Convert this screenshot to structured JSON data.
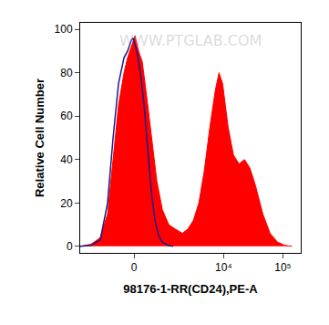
{
  "chart_data": {
    "type": "area",
    "xlabel": "98176-1-RR(CD24),PE-A",
    "ylabel": "Relative Cell Number",
    "annotations": [
      {
        "text": "WWW.PTGLAB.COM"
      }
    ],
    "xlim": [
      -2470,
      200000
    ],
    "xticks": [
      0,
      {
        "value": 10000,
        "label": "10⁴"
      },
      {
        "value": 100000,
        "label": "10⁵"
      }
    ],
    "ylim": [
      -3,
      103
    ],
    "yticks": [
      0,
      20,
      40,
      60,
      80,
      100
    ],
    "grid": false,
    "series": [
      {
        "type": "area",
        "color": "#ff0000",
        "x": [
          -2470,
          -1584,
          -1068,
          -756,
          -563,
          -397,
          -248,
          -156,
          -66,
          22,
          110,
          201,
          296,
          450,
          625,
          826,
          1112,
          1466,
          1980,
          2470,
          3074,
          3815,
          4730,
          5870,
          7270,
          8380,
          9630,
          11920,
          14720,
          18260,
          22540,
          27880,
          34530,
          45830,
          60860,
          80730,
          107100,
          142500
        ],
        "values": [
          0,
          1,
          4,
          15,
          40,
          65,
          80,
          87,
          92,
          97,
          90,
          85,
          72,
          50,
          30,
          17,
          10,
          8,
          6,
          8,
          12,
          20,
          35,
          55,
          72,
          80,
          75,
          55,
          42,
          38,
          40,
          36,
          28,
          15,
          6,
          2,
          0.5,
          0
        ]
      },
      {
        "type": "line",
        "color": "#1a1a8c",
        "x": [
          -2470,
          -1584,
          -1068,
          -756,
          -563,
          -397,
          -248,
          -156,
          -66,
          -22,
          66,
          156,
          248,
          346,
          450,
          563,
          686,
          826,
          1068,
          1354
        ],
        "values": [
          0,
          0.5,
          3,
          20,
          50,
          75,
          87,
          90,
          95,
          96,
          90,
          80,
          65,
          45,
          25,
          12,
          5,
          2,
          0.5,
          0
        ]
      }
    ]
  }
}
